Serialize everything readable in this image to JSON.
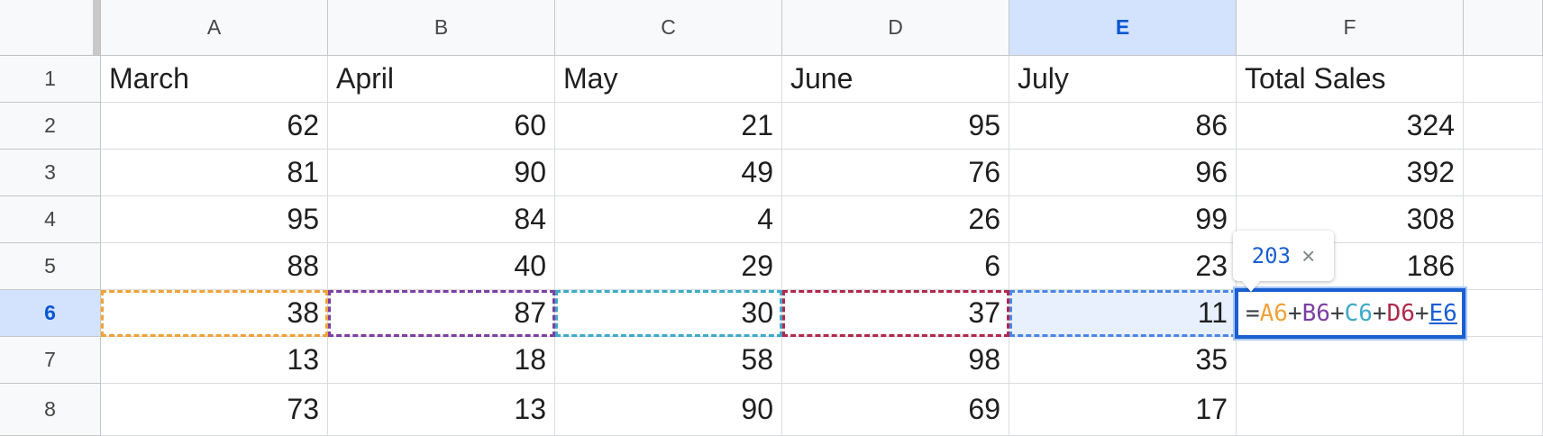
{
  "sheet": {
    "column_headers": [
      "A",
      "B",
      "C",
      "D",
      "E",
      "F",
      ""
    ],
    "active_column": "E",
    "active_row": "6",
    "rows": [
      {
        "row": "1",
        "cells": [
          "March",
          "April",
          "May",
          "June",
          "July",
          "Total Sales",
          ""
        ]
      },
      {
        "row": "2",
        "cells": [
          "62",
          "60",
          "21",
          "95",
          "86",
          "324",
          ""
        ]
      },
      {
        "row": "3",
        "cells": [
          "81",
          "90",
          "49",
          "76",
          "96",
          "392",
          ""
        ]
      },
      {
        "row": "4",
        "cells": [
          "95",
          "84",
          "4",
          "26",
          "99",
          "308",
          ""
        ]
      },
      {
        "row": "5",
        "cells": [
          "88",
          "40",
          "29",
          "6",
          "23",
          "186",
          ""
        ]
      },
      {
        "row": "6",
        "cells": [
          "38",
          "87",
          "30",
          "37",
          "11",
          "",
          ""
        ]
      },
      {
        "row": "7",
        "cells": [
          "13",
          "18",
          "58",
          "98",
          "35",
          "",
          ""
        ]
      },
      {
        "row": "8",
        "cells": [
          "73",
          "13",
          "90",
          "69",
          "17",
          "",
          ""
        ]
      }
    ]
  },
  "editor": {
    "cell": "F6",
    "formula_parts": [
      {
        "t": "eq",
        "v": "="
      },
      {
        "t": "ref",
        "v": "A6"
      },
      {
        "t": "op",
        "v": "+"
      },
      {
        "t": "ref",
        "v": "B6"
      },
      {
        "t": "op",
        "v": "+"
      },
      {
        "t": "ref",
        "v": "C6"
      },
      {
        "t": "op",
        "v": "+"
      },
      {
        "t": "ref",
        "v": "D6"
      },
      {
        "t": "op",
        "v": "+"
      },
      {
        "t": "ref",
        "v": "E6"
      }
    ]
  },
  "preview_popup": {
    "value": "203",
    "close_label": "×"
  },
  "colors": {
    "ref_a": "#f0a23a",
    "ref_b": "#7b3fa1",
    "ref_c": "#3fa9c8",
    "ref_d": "#b0284a",
    "ref_e": "#4a86e8",
    "active_header": "#d3e3fd"
  }
}
